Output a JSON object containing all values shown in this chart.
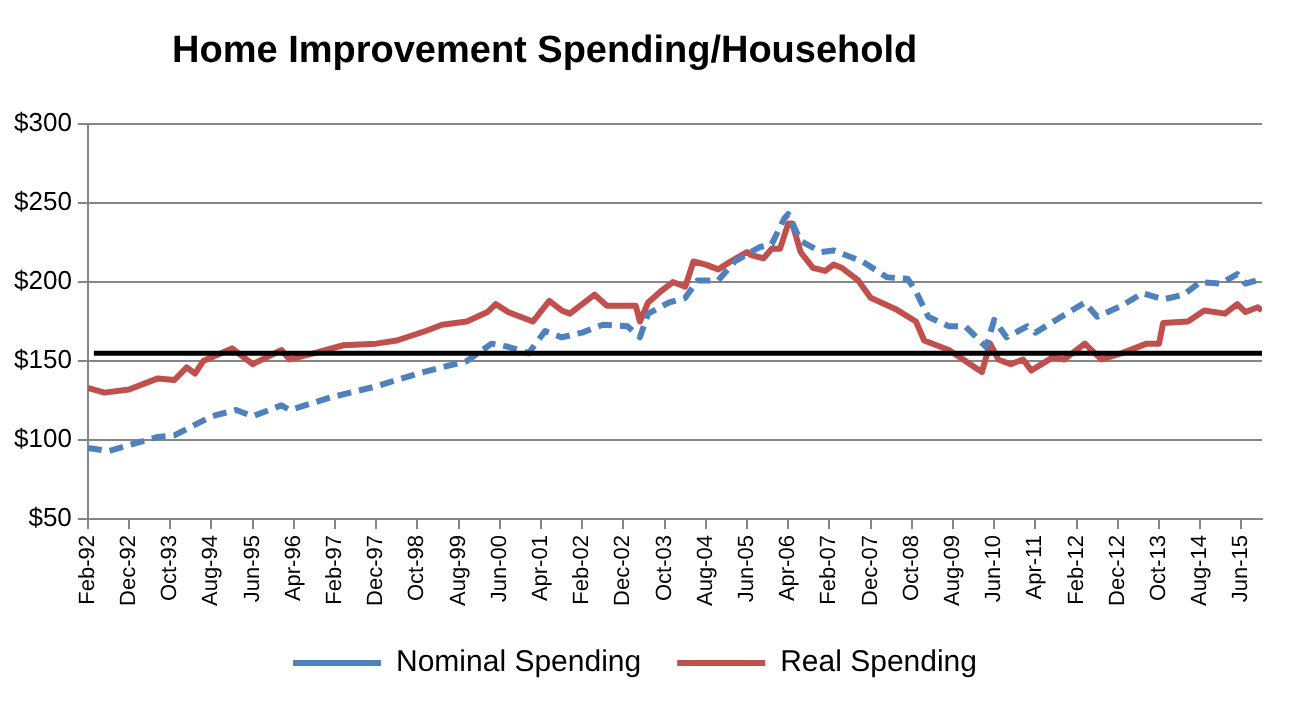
{
  "chart_data": {
    "type": "line",
    "title": "Home Improvement Spending/Household",
    "xlim": [
      "1992-02",
      "2015-11"
    ],
    "xticks": [
      {
        "value": "1992-02",
        "label": "Feb-92"
      },
      {
        "value": "1992-12",
        "label": "Dec-92"
      },
      {
        "value": "1993-10",
        "label": "Oct-93"
      },
      {
        "value": "1994-08",
        "label": "Aug-94"
      },
      {
        "value": "1995-06",
        "label": "Jun-95"
      },
      {
        "value": "1996-04",
        "label": "Apr-96"
      },
      {
        "value": "1997-02",
        "label": "Feb-97"
      },
      {
        "value": "1997-12",
        "label": "Dec-97"
      },
      {
        "value": "1998-10",
        "label": "Oct-98"
      },
      {
        "value": "1999-08",
        "label": "Aug-99"
      },
      {
        "value": "2000-06",
        "label": "Jun-00"
      },
      {
        "value": "2001-04",
        "label": "Apr-01"
      },
      {
        "value": "2002-02",
        "label": "Feb-02"
      },
      {
        "value": "2002-12",
        "label": "Dec-02"
      },
      {
        "value": "2003-10",
        "label": "Oct-03"
      },
      {
        "value": "2004-08",
        "label": "Aug-04"
      },
      {
        "value": "2005-06",
        "label": "Jun-05"
      },
      {
        "value": "2006-04",
        "label": "Apr-06"
      },
      {
        "value": "2007-02",
        "label": "Feb-07"
      },
      {
        "value": "2007-12",
        "label": "Dec-07"
      },
      {
        "value": "2008-10",
        "label": "Oct-08"
      },
      {
        "value": "2009-08",
        "label": "Aug-09"
      },
      {
        "value": "2010-06",
        "label": "Jun-10"
      },
      {
        "value": "2011-04",
        "label": "Apr-11"
      },
      {
        "value": "2012-02",
        "label": "Feb-12"
      },
      {
        "value": "2012-12",
        "label": "Dec-12"
      },
      {
        "value": "2013-10",
        "label": "Oct-13"
      },
      {
        "value": "2014-08",
        "label": "Aug-14"
      },
      {
        "value": "2015-06",
        "label": "Jun-15"
      }
    ],
    "ylim": [
      50,
      300
    ],
    "yticks": [
      {
        "value": 50,
        "label": "$50"
      },
      {
        "value": 100,
        "label": "$100"
      },
      {
        "value": 150,
        "label": "$150"
      },
      {
        "value": 200,
        "label": "$200"
      },
      {
        "value": 250,
        "label": "$250"
      },
      {
        "value": 300,
        "label": "$300"
      }
    ],
    "grid": "y",
    "legend": "bottom",
    "ref_lines": [
      {
        "axis": "y",
        "value": 155,
        "color": "#000000"
      }
    ],
    "series": [
      {
        "name": "Nominal Spending",
        "color": "#4f81bd",
        "line_style": "dashed",
        "x": [
          "1992-02",
          "1992-07",
          "1993-07",
          "1993-11",
          "1994-08",
          "1995-02",
          "1995-06",
          "1996-01",
          "1996-03",
          "1997-01",
          "1997-12",
          "1998-10",
          "1999-10",
          "2000-04",
          "2000-08",
          "2001-01",
          "2001-05",
          "2001-09",
          "2002-02",
          "2002-07",
          "2003-01",
          "2003-04",
          "2003-06",
          "2003-11",
          "2004-03",
          "2004-06",
          "2004-11",
          "2005-03",
          "2005-09",
          "2005-12",
          "2006-03",
          "2006-04",
          "2006-07",
          "2006-12",
          "2007-03",
          "2007-10",
          "2008-04",
          "2008-09",
          "2008-11",
          "2009-02",
          "2009-07",
          "2009-11",
          "2010-04",
          "2010-06",
          "2010-09",
          "2011-02",
          "2011-04",
          "2011-09",
          "2012-04",
          "2012-07",
          "2013-01",
          "2013-06",
          "2013-11",
          "2014-04",
          "2014-08",
          "2015-01",
          "2015-05",
          "2015-07",
          "2015-11"
        ],
        "values": [
          95,
          93,
          102,
          103,
          115,
          119,
          115,
          122,
          119,
          127,
          134,
          142,
          150,
          161,
          159,
          155,
          169,
          165,
          168,
          173,
          172,
          165,
          180,
          187,
          190,
          201,
          201,
          213,
          222,
          224,
          240,
          243,
          226,
          219,
          220,
          213,
          203,
          202,
          194,
          178,
          172,
          172,
          159,
          176,
          165,
          172,
          168,
          176,
          187,
          178,
          185,
          193,
          189,
          192,
          200,
          199,
          205,
          199,
          202
        ]
      },
      {
        "name": "Real Spending",
        "color": "#c0504d",
        "line_style": "solid",
        "x": [
          "1992-02",
          "1992-06",
          "1992-12",
          "1993-04",
          "1993-07",
          "1993-11",
          "1994-02",
          "1994-04",
          "1994-06",
          "1995-01",
          "1995-06",
          "1996-01",
          "1996-03",
          "1996-09",
          "1997-04",
          "1997-12",
          "1998-05",
          "1998-12",
          "1999-04",
          "1999-10",
          "2000-03",
          "2000-05",
          "2000-08",
          "2001-02",
          "2001-06",
          "2001-09",
          "2001-11",
          "2002-05",
          "2002-08",
          "2002-12",
          "2003-03",
          "2003-04",
          "2003-06",
          "2003-09",
          "2003-12",
          "2004-03",
          "2004-05",
          "2004-08",
          "2004-11",
          "2005-02",
          "2005-06",
          "2005-07",
          "2005-10",
          "2005-12",
          "2006-02",
          "2006-04",
          "2006-05",
          "2006-07",
          "2006-10",
          "2007-01",
          "2007-03",
          "2007-05",
          "2007-09",
          "2007-12",
          "2008-06",
          "2008-11",
          "2009-01",
          "2009-07",
          "2009-11",
          "2010-03",
          "2010-05",
          "2010-07",
          "2010-10",
          "2011-01",
          "2011-03",
          "2011-08",
          "2011-11",
          "2012-04",
          "2012-08",
          "2013-01",
          "2013-07",
          "2013-10",
          "2013-11",
          "2014-05",
          "2014-09",
          "2015-02",
          "2015-05",
          "2015-07",
          "2015-10",
          "2015-11"
        ],
        "values": [
          133,
          130,
          132,
          136,
          139,
          138,
          146,
          142,
          150,
          158,
          148,
          157,
          151,
          155,
          160,
          161,
          163,
          169,
          173,
          175,
          181,
          186,
          181,
          175,
          188,
          182,
          180,
          192,
          185,
          185,
          185,
          175,
          187,
          194,
          200,
          197,
          213,
          211,
          208,
          213,
          219,
          217,
          215,
          221,
          221,
          237,
          237,
          219,
          209,
          207,
          211,
          209,
          201,
          190,
          183,
          175,
          163,
          157,
          150,
          143,
          161,
          151,
          148,
          151,
          144,
          152,
          151,
          161,
          151,
          155,
          161,
          161,
          174,
          175,
          182,
          180,
          186,
          181,
          184,
          182
        ]
      }
    ]
  }
}
